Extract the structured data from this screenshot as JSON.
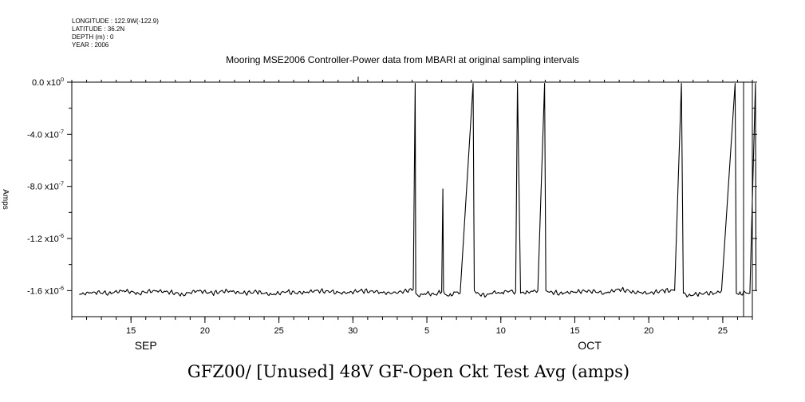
{
  "header": {
    "longitude": "LONGITUDE : 122.9W(-122.9)",
    "latitude": "LATITUDE : 36.2N",
    "depth": "DEPTH (m) : 0",
    "year": "YEAR : 2006"
  },
  "plot_title": "Mooring MSE2006 Controller-Power data from MBARI at original sampling intervals",
  "variable_title": "GFZ00/ [Unused] 48V GF-Open Ckt Test Avg (amps)",
  "y_axis_label": "Amps",
  "chart_data": {
    "type": "line",
    "title": "Mooring MSE2006 Controller-Power data from MBARI at original sampling intervals",
    "xlabel": "",
    "ylabel": "Amps",
    "xlim": [
      "2006-09-11",
      "2006-10-27"
    ],
    "ylim": [
      -1.8e-06,
      0.0
    ],
    "grid": false,
    "y_ticks": [
      {
        "value": 0.0,
        "mantissa": "0.0",
        "exp": "0"
      },
      {
        "value": -4e-07,
        "mantissa": "-4.0",
        "exp": "-7"
      },
      {
        "value": -8e-07,
        "mantissa": "-8.0",
        "exp": "-7"
      },
      {
        "value": -1.2e-06,
        "mantissa": "-1.2",
        "exp": "-6"
      },
      {
        "value": -1.6e-06,
        "mantissa": "-1.6",
        "exp": "-6"
      }
    ],
    "x_tick_labels": [
      {
        "date": "2006-09-15",
        "label": "15"
      },
      {
        "date": "2006-09-20",
        "label": "20"
      },
      {
        "date": "2006-09-25",
        "label": "25"
      },
      {
        "date": "2006-09-30",
        "label": "30"
      },
      {
        "date": "2006-10-05",
        "label": "5"
      },
      {
        "date": "2006-10-10",
        "label": "10"
      },
      {
        "date": "2006-10-15",
        "label": "15"
      },
      {
        "date": "2006-10-20",
        "label": "20"
      },
      {
        "date": "2006-10-25",
        "label": "25"
      }
    ],
    "month_labels": [
      {
        "date": "2006-09-16",
        "label": "SEP"
      },
      {
        "date": "2006-10-16",
        "label": "OCT"
      }
    ],
    "series": [
      {
        "x": [
          "2006-09-11 12:00",
          "2006-09-12 12:00",
          "2006-09-13 12:00",
          "2006-09-14 12:00",
          "2006-09-15 12:00",
          "2006-09-16 12:00",
          "2006-09-17 12:00",
          "2006-09-18 12:00",
          "2006-09-19 12:00",
          "2006-09-20 12:00",
          "2006-09-21 12:00",
          "2006-09-22 12:00",
          "2006-09-23 12:00",
          "2006-09-24 12:00",
          "2006-09-25 12:00",
          "2006-09-26 12:00",
          "2006-09-27 12:00",
          "2006-09-28 12:00",
          "2006-09-29 12:00",
          "2006-09-30 12:00",
          "2006-10-01 12:00",
          "2006-10-02 12:00",
          "2006-10-03 07:00",
          "2006-10-04 02:00",
          "2006-10-04 05:00",
          "2006-10-04 06:00",
          "2006-10-04 10:00",
          "2006-10-05 00:00",
          "2006-10-05 12:00",
          "2006-10-06 00:00",
          "2006-10-06 02:00",
          "2006-10-06 03:00",
          "2006-10-06 04:00",
          "2006-10-06 12:00",
          "2006-10-07 00:00",
          "2006-10-07 06:00",
          "2006-10-08 03:00",
          "2006-10-08 05:00",
          "2006-10-08 08:00",
          "2006-10-09 00:00",
          "2006-10-09 12:00",
          "2006-10-10 00:00",
          "2006-10-10 08:00",
          "2006-10-11 00:00",
          "2006-10-11 03:00",
          "2006-10-11 08:00",
          "2006-10-11 20:00",
          "2006-10-12 12:00",
          "2006-10-12 23:00",
          "2006-10-13 01:00",
          "2006-10-13 05:00",
          "2006-10-14 00:00",
          "2006-10-15 00:00",
          "2006-10-16 00:00",
          "2006-10-17 00:00",
          "2006-10-18 00:00",
          "2006-10-19 00:00",
          "2006-10-20 00:00",
          "2006-10-21 00:00",
          "2006-10-21 18:00",
          "2006-10-22 05:00",
          "2006-10-22 08:00",
          "2006-10-22 16:00",
          "2006-10-23 12:00",
          "2006-10-24 12:00",
          "2006-10-24 22:00",
          "2006-10-25 20:00",
          "2006-10-25 22:00",
          "2006-10-26 02:00",
          "2006-10-26 12:00",
          "2006-10-26 20:00",
          "2006-10-27 05:00",
          "2006-10-27 06:00"
        ],
        "y": [
          -1.63e-06,
          -1.61e-06,
          -1.62e-06,
          -1.6e-06,
          -1.62e-06,
          -1.6e-06,
          -1.61e-06,
          -1.63e-06,
          -1.6e-06,
          -1.62e-06,
          -1.6e-06,
          -1.62e-06,
          -1.61e-06,
          -1.63e-06,
          -1.61e-06,
          -1.62e-06,
          -1.6e-06,
          -1.61e-06,
          -1.62e-06,
          -1.6e-06,
          -1.61e-06,
          -1.62e-06,
          -1.61e-06,
          -1.59e-06,
          -1e-08,
          -1.62e-06,
          -1.64e-06,
          -1.62e-06,
          -1.63e-06,
          -1.61e-06,
          -8.2e-07,
          -1.6e-06,
          -1.62e-06,
          -1.64e-06,
          -1.61e-06,
          -1.62e-06,
          -1e-08,
          -1.6e-06,
          -1.62e-06,
          -1.64e-06,
          -1.61e-06,
          -1.62e-06,
          -1.6e-06,
          -1.61e-06,
          -1e-08,
          -1.62e-06,
          -1.61e-06,
          -1.6e-06,
          -1e-08,
          -1.6e-06,
          -1.61e-06,
          -1.62e-06,
          -1.61e-06,
          -1.6e-06,
          -1.62e-06,
          -1.59e-06,
          -1.61e-06,
          -1.62e-06,
          -1.6e-06,
          -1.6e-06,
          -1e-08,
          -1.62e-06,
          -1.64e-06,
          -1.62e-06,
          -1.62e-06,
          -1.6e-06,
          -1e-08,
          -1.62e-06,
          -1.63e-06,
          -1.61e-06,
          -1.62e-06,
          -1e-08,
          -1.6e-06
        ]
      }
    ]
  }
}
